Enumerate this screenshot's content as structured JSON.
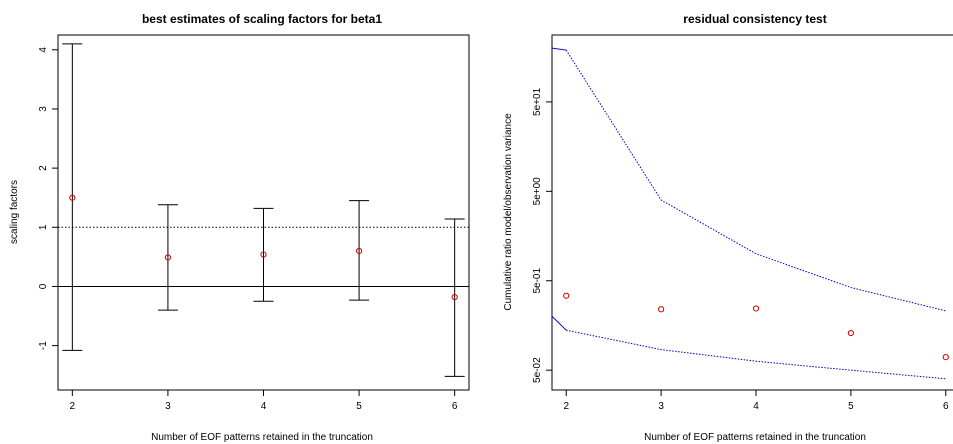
{
  "chart_data": [
    {
      "type": "scatter",
      "title": "best estimates of scaling factors for beta1",
      "xlabel": "Number of EOF patterns retained in the truncation",
      "ylabel": "scaling factors",
      "xlim": [
        1.85,
        6.15
      ],
      "ylim": [
        -1.75,
        4.25
      ],
      "xticks": [
        "2",
        "3",
        "4",
        "5",
        "6"
      ],
      "yticks": [
        "-1",
        "0",
        "1",
        "2",
        "3",
        "4"
      ],
      "reference_lines": [
        {
          "y": 1,
          "style": "dotted"
        },
        {
          "y": 0,
          "style": "solid"
        }
      ],
      "series": [
        {
          "points": [
            {
              "x": 2,
              "y": 1.5,
              "lower": -1.08,
              "upper": 4.1
            },
            {
              "x": 3,
              "y": 0.49,
              "lower": -0.4,
              "upper": 1.38
            },
            {
              "x": 4,
              "y": 0.54,
              "lower": -0.25,
              "upper": 1.32
            },
            {
              "x": 5,
              "y": 0.6,
              "lower": -0.23,
              "upper": 1.45
            },
            {
              "x": 6,
              "y": -0.18,
              "lower": -1.52,
              "upper": 1.14
            }
          ]
        }
      ],
      "colors": {
        "point": "#cc0000",
        "errorbar": "#000000"
      }
    },
    {
      "type": "line",
      "title": "residual consistency test",
      "xlabel": "Number of EOF patterns retained in the truncation",
      "ylabel": "Cumulative ratio model/observation variance",
      "xlim": [
        1.85,
        6.15
      ],
      "ylim": [
        0.03,
        280
      ],
      "yscale": "log",
      "xticks": [
        "2",
        "3",
        "4",
        "5",
        "6"
      ],
      "yticks": [
        {
          "label": "5e-02",
          "value": 0.05
        },
        {
          "label": "5e-01",
          "value": 0.5
        },
        {
          "label": "5e+00",
          "value": 5
        },
        {
          "label": "5e+01",
          "value": 50
        }
      ],
      "upper_bound": {
        "x": [
          1.85,
          2,
          3,
          4,
          5,
          6
        ],
        "y": [
          200,
          190,
          4.0,
          1.0,
          0.42,
          0.23
        ],
        "color": "#0000cc"
      },
      "lower_bound": {
        "x": [
          1.85,
          2,
          3,
          4,
          5,
          6
        ],
        "y": [
          0.2,
          0.14,
          0.085,
          0.063,
          0.05,
          0.04
        ],
        "color": "#0000cc"
      },
      "points": {
        "x": [
          2,
          3,
          4,
          5,
          6
        ],
        "y": [
          0.34,
          0.24,
          0.245,
          0.13,
          0.07
        ],
        "color": "#cc0000"
      }
    }
  ]
}
